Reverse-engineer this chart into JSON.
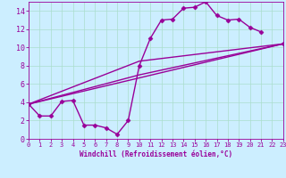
{
  "xlabel": "Windchill (Refroidissement éolien,°C)",
  "bg_color": "#cceeff",
  "line_color": "#990099",
  "grid_color": "#aaddcc",
  "xlim": [
    0,
    23
  ],
  "ylim": [
    0,
    15
  ],
  "xticks": [
    0,
    1,
    2,
    3,
    4,
    5,
    6,
    7,
    8,
    9,
    10,
    11,
    12,
    13,
    14,
    15,
    16,
    17,
    18,
    19,
    20,
    21,
    22,
    23
  ],
  "yticks": [
    0,
    2,
    4,
    6,
    8,
    10,
    12,
    14
  ],
  "series": [
    {
      "x": [
        0,
        1,
        2,
        3,
        4,
        5,
        6,
        7,
        8,
        9,
        10,
        11,
        12,
        13,
        14,
        15,
        16,
        17,
        18,
        19,
        20,
        21,
        22,
        23
      ],
      "y": [
        3.8,
        2.5,
        2.5,
        4.1,
        4.2,
        1.5,
        1.5,
        1.2,
        0.5,
        2.0,
        8.0,
        11.0,
        13.0,
        13.1,
        14.3,
        14.4,
        15.0,
        13.5,
        13.0,
        13.1,
        12.2,
        11.7,
        null,
        10.4
      ],
      "marker": "D",
      "markersize": 2.5,
      "linewidth": 1.0
    },
    {
      "x": [
        0,
        23
      ],
      "y": [
        3.8,
        10.4
      ],
      "marker": null,
      "linewidth": 1.0
    },
    {
      "x": [
        0,
        10,
        23
      ],
      "y": [
        3.8,
        7.0,
        10.4
      ],
      "marker": null,
      "linewidth": 1.0
    },
    {
      "x": [
        0,
        10,
        23
      ],
      "y": [
        3.8,
        8.5,
        10.4
      ],
      "marker": null,
      "linewidth": 1.0
    }
  ]
}
